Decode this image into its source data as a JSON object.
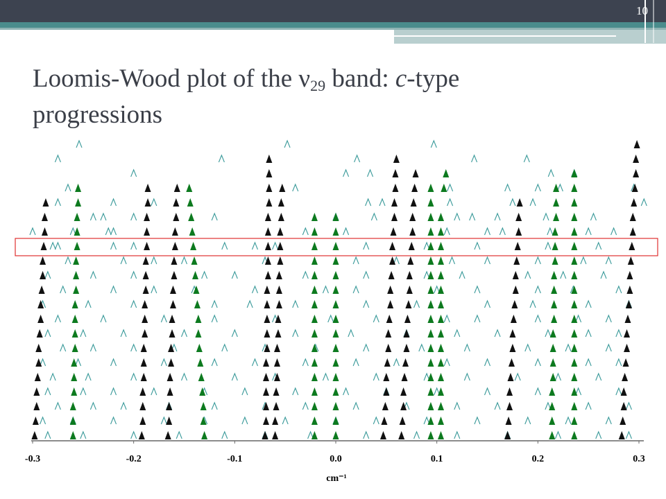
{
  "slide_number": "10",
  "chart_data": {
    "type": "loomis-wood",
    "title_parts": [
      "Loomis-Wood plot of the ν",
      "29",
      " band: ",
      "c",
      "-type progressions"
    ],
    "xlabel": "cm⁻¹",
    "xlim": [
      -0.3,
      0.3
    ],
    "xticks": [
      -0.3,
      -0.2,
      -0.1,
      {
        "value": 0,
        "label": "0.0"
      },
      0.1,
      0.2,
      0.3
    ],
    "peak_color": "#3a9a9a",
    "peaks": [
      [
        -0.254,
        -0.048,
        0.097
      ],
      [
        -0.275,
        -0.113,
        0.021,
        0.137,
        0.189
      ],
      [
        -0.2,
        0.01,
        0.034,
        0.213,
        0.236
      ],
      [
        -0.265,
        -0.04,
        0.113,
        0.17,
        0.2,
        0.222,
        0.295
      ],
      [
        -0.275,
        -0.22,
        -0.18,
        0.032,
        0.046,
        0.113,
        0.175,
        0.195,
        0.305
      ],
      [
        -0.24,
        -0.23,
        -0.2,
        -0.12,
        0.0,
        0.038,
        0.12,
        0.135,
        0.16,
        0.208,
        0.255
      ],
      [
        -0.3,
        -0.26,
        -0.225,
        -0.22,
        -0.03,
        0.01,
        0.11,
        0.15,
        0.165,
        0.212,
        0.25,
        0.275
      ],
      [
        -0.28,
        -0.275,
        -0.22,
        -0.2,
        -0.08,
        -0.11,
        -0.06,
        0.03,
        0.09,
        0.14,
        0.21,
        0.26
      ],
      [
        -0.265,
        -0.21,
        -0.18,
        -0.15,
        -0.07,
        0.02,
        0.06,
        0.115,
        0.15,
        0.2,
        0.245,
        0.27
      ],
      [
        -0.285,
        -0.24,
        -0.2,
        -0.13,
        -0.1,
        -0.03,
        0.03,
        0.09,
        0.125,
        0.19,
        0.225,
        0.265
      ],
      [
        -0.27,
        -0.22,
        -0.18,
        -0.14,
        -0.08,
        -0.01,
        0.02,
        0.1,
        0.14,
        0.2,
        0.235,
        0.28
      ],
      [
        -0.29,
        -0.245,
        -0.2,
        -0.12,
        -0.085,
        -0.04,
        0.03,
        0.08,
        0.15,
        0.195,
        0.25,
        0.29
      ],
      [
        -0.275,
        -0.23,
        -0.17,
        -0.12,
        -0.06,
        -0.005,
        0.04,
        0.11,
        0.14,
        0.2,
        0.24,
        0.27
      ],
      [
        -0.285,
        -0.25,
        -0.21,
        -0.15,
        -0.1,
        -0.04,
        0.015,
        0.07,
        0.12,
        0.16,
        0.21,
        0.25,
        0.28
      ],
      [
        -0.27,
        -0.24,
        -0.2,
        -0.16,
        -0.11,
        -0.07,
        -0.02,
        0.03,
        0.085,
        0.13,
        0.19,
        0.23,
        0.27
      ],
      [
        -0.29,
        -0.255,
        -0.22,
        -0.17,
        -0.12,
        -0.08,
        -0.03,
        0.02,
        0.06,
        0.11,
        0.15,
        0.2,
        0.25,
        0.28
      ],
      [
        -0.28,
        -0.245,
        -0.2,
        -0.15,
        -0.1,
        -0.06,
        -0.01,
        0.04,
        0.09,
        0.13,
        0.18,
        0.22,
        0.26
      ],
      [
        -0.285,
        -0.25,
        -0.22,
        -0.18,
        -0.13,
        -0.09,
        -0.04,
        0.01,
        0.05,
        0.1,
        0.15,
        0.2,
        0.24,
        0.28
      ],
      [
        -0.275,
        -0.24,
        -0.21,
        -0.165,
        -0.12,
        -0.07,
        -0.03,
        0.02,
        0.07,
        0.12,
        0.16,
        0.21,
        0.25,
        0.29
      ],
      [
        -0.29,
        -0.26,
        -0.22,
        -0.17,
        -0.13,
        -0.09,
        -0.05,
        0.0,
        0.04,
        0.09,
        0.14,
        0.19,
        0.23,
        0.27
      ],
      [
        -0.285,
        -0.25,
        -0.2,
        -0.155,
        -0.11,
        -0.07,
        -0.025,
        0.03,
        0.08,
        0.12,
        0.17,
        0.22,
        0.26,
        0.29
      ]
    ],
    "series": [
      {
        "color": "#111111",
        "x": [
          null,
          null,
          null,
          null,
          -0.287,
          -0.288,
          -0.288,
          -0.289,
          -0.29,
          -0.29,
          -0.291,
          -0.292,
          -0.292,
          -0.293,
          -0.294,
          -0.294,
          -0.295,
          -0.296,
          -0.296,
          -0.297,
          -0.298
        ]
      },
      {
        "color": "#111111",
        "x": [
          null,
          null,
          null,
          -0.186,
          -0.186,
          -0.187,
          -0.187,
          -0.187,
          -0.188,
          -0.188,
          -0.188,
          -0.189,
          -0.189,
          -0.189,
          -0.19,
          -0.19,
          -0.19,
          -0.191,
          -0.191,
          -0.191,
          -0.192
        ]
      },
      {
        "color": "#111111",
        "x": [
          null,
          null,
          null,
          -0.157,
          -0.158,
          -0.158,
          -0.159,
          -0.159,
          -0.16,
          -0.16,
          -0.161,
          -0.161,
          -0.162,
          -0.162,
          -0.163,
          -0.163,
          -0.164,
          -0.164,
          -0.165,
          -0.165,
          -0.166
        ]
      },
      {
        "color": "#111111",
        "x": [
          null,
          -0.066,
          -0.066,
          -0.066,
          -0.066,
          -0.067,
          -0.067,
          -0.067,
          -0.067,
          -0.067,
          -0.068,
          -0.068,
          -0.068,
          -0.068,
          -0.068,
          -0.069,
          -0.069,
          -0.069,
          -0.069,
          -0.069,
          -0.07
        ]
      },
      {
        "color": "#111111",
        "x": [
          null,
          null,
          null,
          -0.053,
          -0.054,
          -0.054,
          -0.055,
          -0.055,
          -0.055,
          -0.056,
          -0.056,
          -0.056,
          -0.057,
          -0.057,
          -0.058,
          -0.058,
          -0.058,
          -0.059,
          -0.059,
          -0.06,
          -0.06
        ]
      },
      {
        "color": "#111111",
        "x": [
          null,
          0.06,
          0.059,
          0.059,
          0.058,
          0.058,
          0.057,
          0.056,
          0.056,
          0.055,
          0.054,
          0.054,
          0.053,
          0.052,
          0.052,
          0.051,
          0.05,
          0.05,
          0.049,
          0.048,
          0.047
        ]
      },
      {
        "color": "#111111",
        "x": [
          null,
          null,
          0.079,
          0.078,
          0.077,
          0.076,
          0.076,
          0.075,
          0.074,
          0.073,
          0.073,
          0.072,
          0.071,
          0.07,
          0.07,
          0.069,
          0.068,
          0.067,
          0.067,
          0.066,
          0.065
        ]
      },
      {
        "color": "#111111",
        "x": [
          null,
          null,
          null,
          null,
          0.182,
          0.181,
          0.181,
          0.18,
          0.179,
          0.178,
          0.178,
          0.177,
          0.176,
          0.175,
          0.175,
          0.174,
          0.173,
          0.172,
          0.172,
          0.171,
          0.17
        ]
      },
      {
        "color": "#111111",
        "x": [
          0.298,
          0.297,
          0.297,
          0.296,
          0.295,
          0.294,
          0.294,
          0.293,
          0.292,
          0.291,
          0.291,
          0.29,
          0.289,
          0.288,
          0.288,
          0.287,
          0.286,
          0.285,
          0.285,
          0.284,
          0.283
        ]
      },
      {
        "color": "#0d7a1f",
        "x": [
          null,
          null,
          null,
          -0.255,
          -0.255,
          -0.256,
          -0.256,
          -0.256,
          -0.257,
          -0.257,
          -0.257,
          -0.258,
          -0.258,
          -0.258,
          -0.258,
          -0.259,
          -0.259,
          -0.259,
          -0.26,
          -0.26,
          -0.26
        ]
      },
      {
        "color": "#0d7a1f",
        "x": [
          null,
          null,
          null,
          -0.145,
          -0.144,
          -0.143,
          -0.142,
          -0.141,
          -0.14,
          -0.139,
          -0.138,
          -0.137,
          -0.136,
          -0.136,
          -0.135,
          -0.134,
          -0.133,
          -0.132,
          -0.131,
          -0.131,
          -0.13
        ]
      },
      {
        "color": "#0d7a1f",
        "x": [
          null,
          null,
          null,
          null,
          null,
          -0.021,
          -0.021,
          -0.021,
          -0.021,
          -0.021,
          -0.021,
          -0.021,
          -0.021,
          -0.021,
          -0.021,
          -0.021,
          -0.021,
          -0.021,
          -0.021,
          -0.021,
          -0.021
        ]
      },
      {
        "color": "#0d7a1f",
        "x": [
          null,
          null,
          null,
          null,
          null,
          0,
          0,
          0,
          0,
          0,
          0,
          0,
          0,
          0,
          0,
          0,
          0,
          0,
          0,
          0,
          0
        ]
      },
      {
        "color": "#0d7a1f",
        "x": [
          null,
          null,
          null,
          0.094,
          0.094,
          0.094,
          0.094,
          0.094,
          0.094,
          0.094,
          0.094,
          0.094,
          0.094,
          0.094,
          0.094,
          0.094,
          0.094,
          0.094,
          0.094,
          0.094,
          0.094
        ]
      },
      {
        "color": "#0d7a1f",
        "x": [
          null,
          null,
          0.109,
          0.107,
          null,
          0.104,
          0.104,
          0.104,
          0.104,
          0.104,
          0.104,
          0.104,
          0.104,
          0.104,
          0.104,
          0.104,
          0.104,
          0.104,
          0.104,
          0.104,
          0.104
        ]
      },
      {
        "color": "#0d7a1f",
        "x": [
          null,
          null,
          null,
          0.218,
          0.218,
          0.218,
          0.217,
          0.217,
          0.217,
          0.216,
          0.216,
          0.216,
          0.216,
          0.215,
          0.215,
          0.215,
          0.215,
          0.214,
          0.214,
          0.214,
          0.214
        ]
      },
      {
        "color": "#0d7a1f",
        "x": [
          null,
          null,
          0.236,
          0.236,
          0.236,
          0.236,
          0.236,
          0.236,
          0.236,
          0.236,
          0.236,
          0.236,
          0.236,
          0.236,
          0.236,
          0.236,
          0.236,
          0.236,
          0.236,
          0.236,
          0.236
        ]
      }
    ]
  }
}
